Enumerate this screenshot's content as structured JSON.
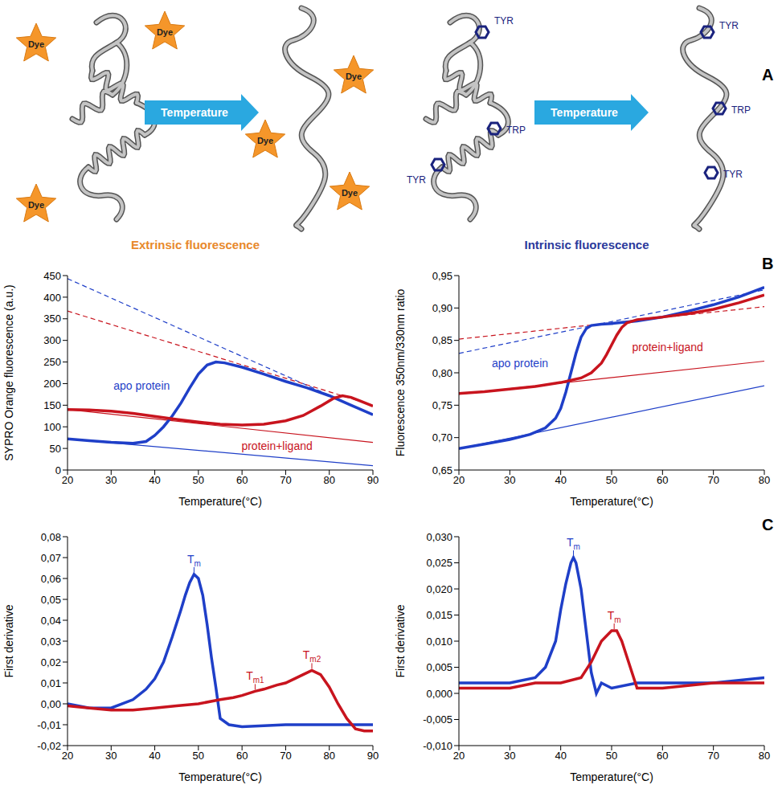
{
  "diagram": {
    "letter": "A",
    "arrow_labels": [
      "Temperature",
      "Temperature"
    ],
    "extrinsic": {
      "folded": [
        "Dye",
        "Dye",
        "Dye"
      ],
      "unfolded": [
        "Dye",
        "Dye",
        "Dye"
      ]
    },
    "intrinsic": {
      "folded": [
        "TYR",
        "TYR",
        "TRP"
      ],
      "unfolded": [
        "TYR",
        "TRP",
        "TYR"
      ]
    }
  },
  "column_titles": [
    "Extrinsic fluorescence",
    "Intrinsic fluorescence"
  ],
  "row_letters": [
    "B",
    "C"
  ],
  "chart_data": [
    {
      "type": "line",
      "x_label": "Temperature(°C)",
      "y_label": "SYPRO Orange fluorescence (a.u.)",
      "xlim": [
        20,
        90
      ],
      "xticks": [
        20,
        30,
        40,
        50,
        60,
        70,
        80,
        90
      ],
      "ylim": [
        0,
        450
      ],
      "yticks": [
        0,
        50,
        100,
        150,
        200,
        250,
        300,
        350,
        400,
        450
      ],
      "series": [
        {
          "color": "#1f3fc8",
          "x": [
            20,
            90
          ],
          "values": [
            72,
            10
          ],
          "line_style": "solid"
        },
        {
          "color": "#1f3fc8",
          "x": [
            20,
            90
          ],
          "values": [
            443,
            128
          ],
          "line_style": "dashed"
        },
        {
          "color": "#c8141e",
          "x": [
            20,
            90
          ],
          "values": [
            140,
            64
          ],
          "line_style": "solid"
        },
        {
          "color": "#c8141e",
          "x": [
            20,
            90
          ],
          "values": [
            368,
            150
          ],
          "line_style": "dashed"
        },
        {
          "name": "apo protein",
          "color": "#1f3fc8",
          "marker": "dot",
          "x": [
            20,
            25,
            30,
            35,
            38,
            40,
            42,
            44,
            46,
            48,
            50,
            52,
            54,
            56,
            60,
            65,
            70,
            75,
            80,
            85,
            90
          ],
          "values": [
            72,
            68,
            64,
            62,
            66,
            80,
            100,
            125,
            155,
            190,
            222,
            243,
            250,
            248,
            238,
            222,
            205,
            190,
            172,
            150,
            128
          ]
        },
        {
          "name": "protein+ligand",
          "color": "#c8141e",
          "marker": "dot",
          "x": [
            20,
            25,
            30,
            35,
            40,
            45,
            50,
            55,
            60,
            65,
            70,
            74,
            78,
            81,
            83,
            85,
            87,
            90
          ],
          "values": [
            140,
            139,
            136,
            131,
            124,
            117,
            111,
            106,
            104,
            106,
            114,
            126,
            148,
            166,
            172,
            168,
            160,
            148
          ]
        }
      ],
      "annotations": []
    },
    {
      "type": "line",
      "x_label": "Temperature(°C)",
      "y_label": "Fluorescence 350nm/330nm ratio",
      "xlim": [
        20,
        80
      ],
      "xticks": [
        20,
        30,
        40,
        50,
        60,
        70,
        80
      ],
      "ylim": [
        0.65,
        0.95
      ],
      "yticks": [
        {
          "value": 0.65,
          "label": "0,65"
        },
        {
          "value": 0.7,
          "label": "0,70"
        },
        {
          "value": 0.75,
          "label": "0,75"
        },
        {
          "value": 0.8,
          "label": "0,80"
        },
        {
          "value": 0.85,
          "label": "0,85"
        },
        {
          "value": 0.9,
          "label": "0,90"
        },
        {
          "value": 0.95,
          "label": "0,95"
        }
      ],
      "series": [
        {
          "color": "#1f3fc8",
          "x": [
            20,
            80
          ],
          "values": [
            0.683,
            0.78
          ],
          "line_style": "solid"
        },
        {
          "color": "#1f3fc8",
          "x": [
            20,
            80
          ],
          "values": [
            0.83,
            0.928
          ],
          "line_style": "dashed"
        },
        {
          "color": "#c8141e",
          "x": [
            20,
            80
          ],
          "values": [
            0.767,
            0.818
          ],
          "line_style": "solid"
        },
        {
          "color": "#c8141e",
          "x": [
            20,
            80
          ],
          "values": [
            0.852,
            0.902
          ],
          "line_style": "dashed"
        },
        {
          "name": "apo protein",
          "color": "#1f3fc8",
          "marker": "dot",
          "x": [
            20,
            25,
            30,
            34,
            37,
            39,
            40,
            41,
            42,
            43,
            44,
            45,
            46,
            48,
            50,
            55,
            60,
            65,
            70,
            75,
            80
          ],
          "values": [
            0.683,
            0.69,
            0.697,
            0.705,
            0.715,
            0.73,
            0.745,
            0.77,
            0.8,
            0.83,
            0.855,
            0.868,
            0.873,
            0.875,
            0.876,
            0.88,
            0.886,
            0.895,
            0.905,
            0.917,
            0.932
          ]
        },
        {
          "name": "protein+ligand",
          "color": "#c8141e",
          "marker": "dot",
          "x": [
            20,
            25,
            30,
            35,
            40,
            44,
            46,
            48,
            49,
            50,
            51,
            52,
            53,
            55,
            60,
            65,
            70,
            75,
            80
          ],
          "values": [
            0.768,
            0.771,
            0.775,
            0.779,
            0.785,
            0.792,
            0.8,
            0.815,
            0.828,
            0.843,
            0.858,
            0.87,
            0.877,
            0.882,
            0.886,
            0.891,
            0.898,
            0.908,
            0.92
          ]
        }
      ],
      "annotations": []
    },
    {
      "type": "line",
      "x_label": "Temperature(°C)",
      "y_label": "First derivative",
      "xlim": [
        20,
        90
      ],
      "xticks": [
        20,
        30,
        40,
        50,
        60,
        70,
        80,
        90
      ],
      "ylim": [
        -0.02,
        0.08
      ],
      "yticks": [
        {
          "value": -0.02,
          "label": "-0,02"
        },
        {
          "value": -0.01,
          "label": "-0,01"
        },
        {
          "value": 0,
          "label": "0,00"
        },
        {
          "value": 0.01,
          "label": "0,01"
        },
        {
          "value": 0.02,
          "label": "0,02"
        },
        {
          "value": 0.03,
          "label": "0,03"
        },
        {
          "value": 0.04,
          "label": "0,04"
        },
        {
          "value": 0.05,
          "label": "0,05"
        },
        {
          "value": 0.06,
          "label": "0,06"
        },
        {
          "value": 0.07,
          "label": "0,07"
        },
        {
          "value": 0.08,
          "label": "0,08"
        }
      ],
      "series": [
        {
          "color": "#1f3fc8",
          "marker": "dot",
          "x": [
            20,
            25,
            30,
            35,
            38,
            40,
            42,
            44,
            46,
            47,
            48,
            49,
            50,
            51,
            52,
            53,
            54,
            55,
            57,
            60,
            70,
            80,
            90
          ],
          "values": [
            0,
            -0.002,
            -0.002,
            0.002,
            0.007,
            0.012,
            0.02,
            0.032,
            0.045,
            0.052,
            0.058,
            0.062,
            0.06,
            0.052,
            0.038,
            0.022,
            0.008,
            -0.007,
            -0.01,
            -0.011,
            -0.01,
            -0.01,
            -0.01
          ]
        },
        {
          "color": "#c8141e",
          "marker": "dot",
          "x": [
            20,
            25,
            30,
            35,
            40,
            45,
            50,
            55,
            58,
            60,
            63,
            65,
            68,
            70,
            72,
            74,
            76,
            78,
            80,
            82,
            84,
            86,
            88,
            90
          ],
          "values": [
            -0.001,
            -0.002,
            -0.003,
            -0.003,
            -0.002,
            -0.001,
            0,
            0.002,
            0.003,
            0.004,
            0.006,
            0.007,
            0.009,
            0.01,
            0.012,
            0.014,
            0.016,
            0.014,
            0.008,
            0,
            -0.007,
            -0.012,
            -0.013,
            -0.013
          ]
        }
      ],
      "annotations": [
        {
          "text": "Tm",
          "x": 49,
          "y": 0.062,
          "color": "#1f3fc8"
        },
        {
          "text": "Tm1",
          "x": 63,
          "y": 0.006,
          "color": "#c8141e"
        },
        {
          "text": "Tm2",
          "x": 76,
          "y": 0.016,
          "color": "#c8141e"
        }
      ]
    },
    {
      "type": "line",
      "x_label": "Temperature(°C)",
      "y_label": "First derivative",
      "xlim": [
        20,
        80
      ],
      "xticks": [
        20,
        30,
        40,
        50,
        60,
        70,
        80
      ],
      "ylim": [
        -0.01,
        0.03
      ],
      "yticks": [
        {
          "value": -0.01,
          "label": "-0,010"
        },
        {
          "value": -0.005,
          "label": "-0,005"
        },
        {
          "value": 0,
          "label": "0,000"
        },
        {
          "value": 0.005,
          "label": "0,005"
        },
        {
          "value": 0.01,
          "label": "0,010"
        },
        {
          "value": 0.015,
          "label": "0,015"
        },
        {
          "value": 0.02,
          "label": "0,020"
        },
        {
          "value": 0.025,
          "label": "0,025"
        },
        {
          "value": 0.03,
          "label": "0,030"
        }
      ],
      "series": [
        {
          "color": "#1f3fc8",
          "marker": "dot",
          "x": [
            20,
            25,
            30,
            35,
            37,
            39,
            40,
            41,
            42,
            42.5,
            43,
            44,
            45,
            46,
            47,
            48,
            50,
            55,
            60,
            70,
            80
          ],
          "values": [
            0.002,
            0.002,
            0.002,
            0.003,
            0.005,
            0.01,
            0.016,
            0.021,
            0.025,
            0.026,
            0.025,
            0.02,
            0.012,
            0.004,
            0,
            0.002,
            0.001,
            0.002,
            0.002,
            0.002,
            0.003
          ]
        },
        {
          "color": "#c8141e",
          "marker": "dot",
          "x": [
            20,
            25,
            30,
            35,
            40,
            44,
            46,
            48,
            49,
            50,
            51,
            52,
            53,
            54,
            55,
            60,
            70,
            80
          ],
          "values": [
            0.001,
            0.001,
            0.001,
            0.002,
            0.002,
            0.003,
            0.006,
            0.01,
            0.011,
            0.012,
            0.012,
            0.01,
            0.007,
            0.004,
            0.001,
            0.001,
            0.002,
            0.002
          ]
        }
      ],
      "annotations": [
        {
          "text": "Tm",
          "x": 42.5,
          "y": 0.026,
          "color": "#1f3fc8"
        },
        {
          "text": "Tm",
          "x": 50.5,
          "y": 0.012,
          "color": "#c8141e"
        }
      ]
    }
  ]
}
